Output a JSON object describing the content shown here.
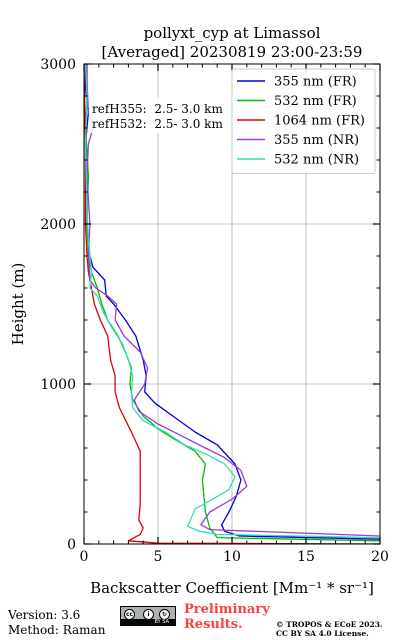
{
  "chart_data": {
    "type": "line",
    "title": "pollyxt_cyp at Limassol",
    "subtitle": "[Averaged] 20230819 23:00-23:59",
    "xlabel": "Backscatter Coefficient [Mm⁻¹ * sr⁻¹]",
    "ylabel": "Height (m)",
    "xlim": [
      0,
      20
    ],
    "ylim": [
      0,
      3000
    ],
    "xticks": [
      "0",
      "5",
      "10",
      "15",
      "20"
    ],
    "yticks": [
      "0",
      "1000",
      "2000",
      "3000"
    ],
    "grid": true,
    "legend_position": "top-right",
    "annotations": [
      "refH355:  2.5- 3.0 km",
      "refH532:  2.5- 3.0 km"
    ],
    "series": [
      {
        "name": "355 nm (FR)",
        "color": "#0000dd",
        "points": [
          [
            20,
            30
          ],
          [
            10.5,
            50
          ],
          [
            9.5,
            80
          ],
          [
            9.3,
            120
          ],
          [
            9.8,
            200
          ],
          [
            10.3,
            300
          ],
          [
            10.6,
            400
          ],
          [
            10.2,
            500
          ],
          [
            9.0,
            620
          ],
          [
            7.5,
            700
          ],
          [
            6.0,
            800
          ],
          [
            4.8,
            880
          ],
          [
            4.1,
            950
          ],
          [
            4.2,
            1050
          ],
          [
            4.0,
            1150
          ],
          [
            3.5,
            1300
          ],
          [
            2.8,
            1400
          ],
          [
            2.0,
            1500
          ],
          [
            1.5,
            1550
          ],
          [
            1.4,
            1650
          ],
          [
            0.6,
            1730
          ],
          [
            0.4,
            1800
          ],
          [
            0.3,
            1900
          ],
          [
            0.2,
            2000
          ],
          [
            0.2,
            2200
          ],
          [
            0.1,
            2500
          ],
          [
            0.3,
            2700
          ],
          [
            0.1,
            2850
          ],
          [
            0.1,
            3000
          ]
        ]
      },
      {
        "name": "532 nm (FR)",
        "color": "#00bb00",
        "points": [
          [
            20,
            20
          ],
          [
            9.0,
            40
          ],
          [
            8.5,
            100
          ],
          [
            8.2,
            200
          ],
          [
            8.1,
            300
          ],
          [
            8.0,
            400
          ],
          [
            8.2,
            500
          ],
          [
            7.5,
            580
          ],
          [
            6.2,
            650
          ],
          [
            5.0,
            720
          ],
          [
            4.0,
            800
          ],
          [
            3.3,
            900
          ],
          [
            3.1,
            1000
          ],
          [
            3.2,
            1100
          ],
          [
            2.8,
            1200
          ],
          [
            2.3,
            1300
          ],
          [
            1.6,
            1400
          ],
          [
            1.2,
            1500
          ],
          [
            0.9,
            1600
          ],
          [
            0.5,
            1700
          ],
          [
            0.3,
            1800
          ],
          [
            0.2,
            2000
          ],
          [
            0.3,
            2300
          ],
          [
            0.1,
            2600
          ],
          [
            0.2,
            2800
          ],
          [
            0.2,
            3000
          ]
        ]
      },
      {
        "name": "1064 nm (FR)",
        "color": "#dd0000",
        "points": [
          [
            20,
            0
          ],
          [
            5.0,
            5
          ],
          [
            3.0,
            20
          ],
          [
            3.8,
            60
          ],
          [
            4.0,
            100
          ],
          [
            3.7,
            150
          ],
          [
            3.8,
            250
          ],
          [
            3.8,
            400
          ],
          [
            3.8,
            580
          ],
          [
            3.2,
            700
          ],
          [
            2.4,
            850
          ],
          [
            2.1,
            950
          ],
          [
            2.1,
            1050
          ],
          [
            1.8,
            1150
          ],
          [
            1.6,
            1300
          ],
          [
            1.1,
            1400
          ],
          [
            0.7,
            1500
          ],
          [
            0.5,
            1600
          ],
          [
            0.3,
            1700
          ],
          [
            0.2,
            1800
          ],
          [
            0.1,
            2000
          ],
          [
            0.1,
            2500
          ],
          [
            0.0,
            3000
          ]
        ]
      },
      {
        "name": "355 nm (NR)",
        "color": "#9a3bdc",
        "points": [
          [
            20,
            50
          ],
          [
            8.5,
            90
          ],
          [
            7.9,
            120
          ],
          [
            8.5,
            200
          ],
          [
            10.0,
            280
          ],
          [
            11.0,
            360
          ],
          [
            10.6,
            460
          ],
          [
            9.5,
            540
          ],
          [
            8.2,
            600
          ],
          [
            6.5,
            680
          ],
          [
            5.0,
            750
          ],
          [
            3.7,
            830
          ],
          [
            3.4,
            900
          ],
          [
            4.1,
            1000
          ],
          [
            4.3,
            1100
          ],
          [
            3.8,
            1200
          ],
          [
            2.7,
            1300
          ],
          [
            2.1,
            1400
          ],
          [
            2.2,
            1500
          ],
          [
            1.6,
            1550
          ],
          [
            0.8,
            1600
          ],
          [
            0.4,
            1650
          ],
          [
            0.3,
            1800
          ],
          [
            0.4,
            2000
          ],
          [
            0.2,
            2300
          ],
          [
            0.3,
            2500
          ],
          [
            0.6,
            2600
          ],
          [
            0.3,
            2700
          ],
          [
            0.2,
            2900
          ],
          [
            0.2,
            3000
          ]
        ]
      },
      {
        "name": "532 nm (NR)",
        "color": "#33ddbb",
        "points": [
          [
            20,
            40
          ],
          [
            9.0,
            60
          ],
          [
            7.8,
            80
          ],
          [
            7.0,
            110
          ],
          [
            7.2,
            150
          ],
          [
            7.5,
            220
          ],
          [
            8.5,
            270
          ],
          [
            9.8,
            340
          ],
          [
            10.2,
            420
          ],
          [
            9.5,
            500
          ],
          [
            8.3,
            560
          ],
          [
            6.8,
            620
          ],
          [
            5.5,
            700
          ],
          [
            4.0,
            770
          ],
          [
            3.3,
            850
          ],
          [
            3.2,
            950
          ],
          [
            3.3,
            1050
          ],
          [
            3.0,
            1150
          ],
          [
            2.6,
            1250
          ],
          [
            1.9,
            1350
          ],
          [
            1.3,
            1450
          ],
          [
            0.9,
            1550
          ],
          [
            0.4,
            1600
          ],
          [
            0.5,
            1700
          ],
          [
            0.3,
            1900
          ],
          [
            0.2,
            2100
          ],
          [
            0.1,
            2500
          ],
          [
            0.2,
            2800
          ],
          [
            0.1,
            3000
          ]
        ]
      }
    ]
  },
  "footer": {
    "version": "Version: 3.6",
    "method": "Method: Raman",
    "preliminary_line1": "Preliminary",
    "preliminary_line2": "Results.",
    "copyright_line1": "© TROPOS & ECoE 2023.",
    "copyright_line2": "CC BY SA 4.0 License.",
    "cc_badge": "BY SA",
    "cc_icon": "cc-by-sa-icon"
  }
}
